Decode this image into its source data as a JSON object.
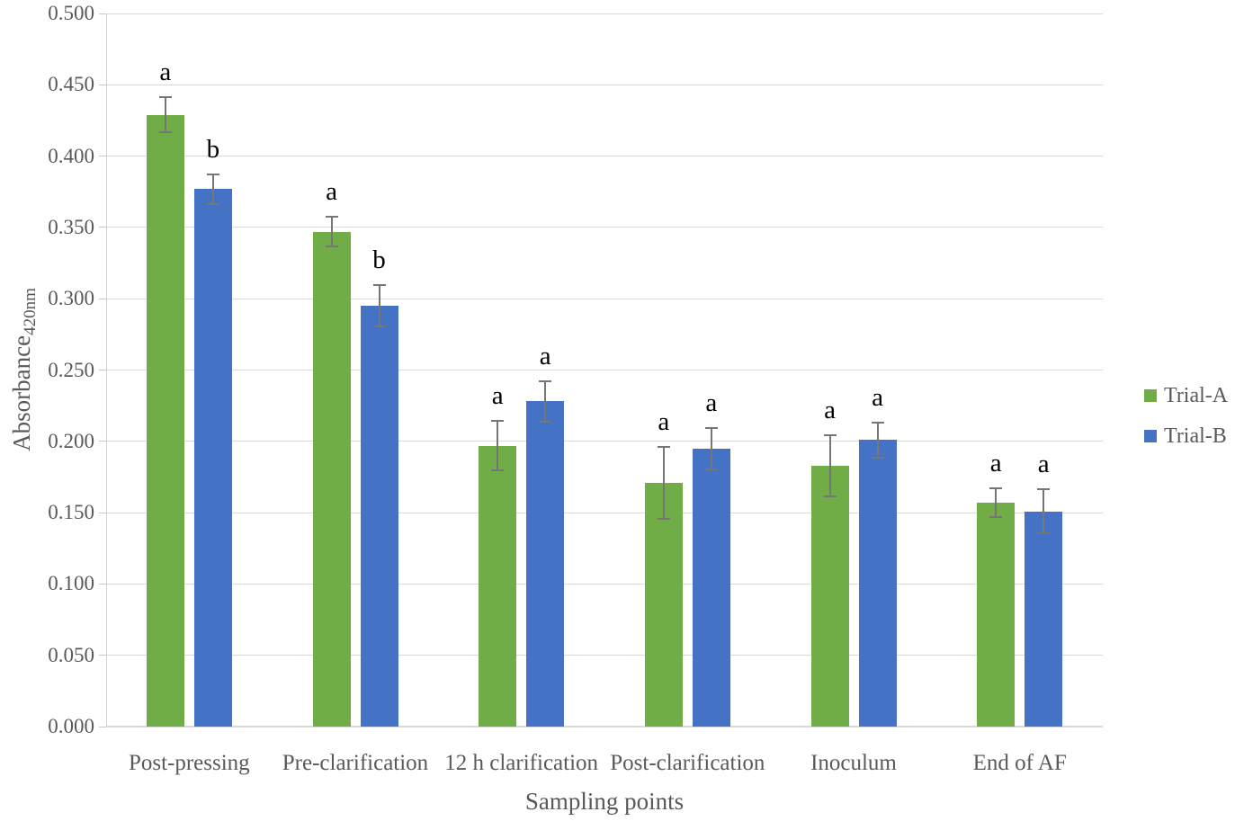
{
  "chart_data": {
    "type": "bar",
    "title": "",
    "xlabel": "Sampling points",
    "ylabel": "Absorbance",
    "ylabel_subscript": "420nm",
    "categories": [
      "Post-pressing",
      "Pre-clarification",
      "12 h clarification",
      "Post-clarification",
      "Inoculum",
      "End of AF"
    ],
    "series": [
      {
        "name": "Trial-A",
        "color": "#70AD47",
        "values": [
          0.429,
          0.347,
          0.197,
          0.171,
          0.183,
          0.157
        ],
        "errors": [
          0.013,
          0.011,
          0.018,
          0.026,
          0.022,
          0.011
        ],
        "letters": [
          "a",
          "a",
          "a",
          "a",
          "a",
          "a"
        ]
      },
      {
        "name": "Trial-B",
        "color": "#4472C4",
        "values": [
          0.377,
          0.295,
          0.228,
          0.195,
          0.201,
          0.151
        ],
        "errors": [
          0.011,
          0.015,
          0.015,
          0.015,
          0.013,
          0.016
        ],
        "letters": [
          "b",
          "b",
          "a",
          "a",
          "a",
          "a"
        ]
      }
    ],
    "ylim": [
      0,
      0.5
    ],
    "ytick_step": 0.05,
    "ytick_decimals": 3,
    "grid": true,
    "legend_position": "right-middle",
    "error_bar_color": "#767676",
    "axis_text_color": "#595959",
    "letter_color": "#000000",
    "gridline_color": "#d9d9d9"
  }
}
